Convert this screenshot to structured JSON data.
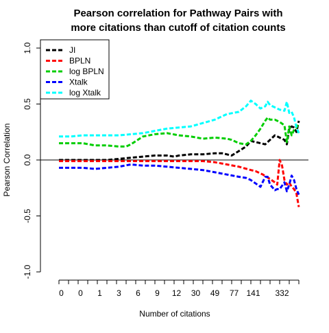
{
  "chart_data": {
    "type": "line",
    "title_line1": "Pearson correlation for Pathway Pairs with",
    "title_line2": "more citations than cutoff of citation counts",
    "xlabel": "Number of citations",
    "ylabel": "Pearson Correlation",
    "ylim": [
      -1.0,
      1.0
    ],
    "xlim": [
      0,
      100
    ],
    "y_ticks": [
      "-1.0",
      "-0.5",
      "0.0",
      "0.5",
      "1.0"
    ],
    "y_tick_values": [
      -1.0,
      -0.5,
      0.0,
      0.5,
      1.0
    ],
    "x_tick_positions": [
      0,
      100
    ],
    "x_tick_count": 26,
    "x_tick_labels": [
      "0",
      "0",
      "1",
      "3",
      "6",
      "9",
      "12",
      "30",
      "49",
      "77",
      "141",
      "332"
    ],
    "x_tick_label_positions": [
      1,
      9,
      17,
      25,
      33,
      41,
      49,
      57,
      65,
      73,
      81,
      93
    ],
    "reference_line_y": 0,
    "legend_position": "top-left",
    "series": [
      {
        "name": "JI",
        "color": "#000000",
        "x": [
          0,
          10,
          20,
          25,
          30,
          35,
          40,
          45,
          48,
          50,
          55,
          60,
          65,
          68,
          70,
          72,
          75,
          78,
          80,
          82,
          84,
          86,
          88,
          90,
          92,
          94,
          95,
          96,
          97,
          98,
          99,
          100
        ],
        "y": [
          0.0,
          0.0,
          0.0,
          0.01,
          0.02,
          0.03,
          0.04,
          0.04,
          0.03,
          0.04,
          0.05,
          0.05,
          0.06,
          0.06,
          0.05,
          0.04,
          0.08,
          0.12,
          0.17,
          0.16,
          0.15,
          0.14,
          0.18,
          0.22,
          0.2,
          0.18,
          0.14,
          0.28,
          0.3,
          0.29,
          0.25,
          0.35
        ]
      },
      {
        "name": "BPLN",
        "color": "#ff0000",
        "x": [
          0,
          10,
          20,
          30,
          40,
          50,
          55,
          60,
          65,
          70,
          75,
          80,
          82,
          85,
          88,
          90,
          91,
          92,
          93,
          94,
          95,
          96,
          97,
          98,
          99,
          100
        ],
        "y": [
          -0.01,
          -0.01,
          -0.01,
          -0.01,
          -0.01,
          -0.01,
          -0.01,
          -0.01,
          -0.02,
          -0.04,
          -0.06,
          -0.09,
          -0.1,
          -0.13,
          -0.17,
          -0.2,
          -0.22,
          0.0,
          -0.05,
          -0.18,
          -0.22,
          -0.2,
          -0.24,
          -0.26,
          -0.3,
          -0.42
        ]
      },
      {
        "name": "log BPLN",
        "color": "#00cd00",
        "x": [
          0,
          5,
          10,
          15,
          20,
          25,
          28,
          30,
          35,
          40,
          45,
          50,
          55,
          60,
          65,
          70,
          72,
          75,
          78,
          80,
          82,
          84,
          86,
          87,
          88,
          90,
          92,
          94,
          95,
          96,
          97,
          98,
          99,
          100
        ],
        "y": [
          0.15,
          0.15,
          0.15,
          0.13,
          0.13,
          0.12,
          0.12,
          0.14,
          0.21,
          0.23,
          0.24,
          0.22,
          0.21,
          0.19,
          0.2,
          0.19,
          0.18,
          0.15,
          0.14,
          0.17,
          0.22,
          0.28,
          0.35,
          0.38,
          0.36,
          0.36,
          0.34,
          0.31,
          0.16,
          0.3,
          0.22,
          0.27,
          0.29,
          0.33
        ]
      },
      {
        "name": "Xtalk",
        "color": "#0000ff",
        "x": [
          0,
          10,
          15,
          20,
          25,
          30,
          35,
          40,
          45,
          50,
          55,
          60,
          65,
          70,
          75,
          78,
          80,
          82,
          84,
          86,
          87,
          88,
          90,
          91,
          92,
          94,
          95,
          96,
          97,
          98,
          99,
          100
        ],
        "y": [
          -0.07,
          -0.07,
          -0.08,
          -0.07,
          -0.06,
          -0.04,
          -0.05,
          -0.05,
          -0.06,
          -0.07,
          -0.08,
          -0.09,
          -0.11,
          -0.13,
          -0.15,
          -0.16,
          -0.18,
          -0.21,
          -0.24,
          -0.15,
          -0.15,
          -0.22,
          -0.27,
          -0.26,
          -0.26,
          -0.2,
          -0.28,
          -0.22,
          -0.14,
          -0.18,
          -0.26,
          -0.31
        ]
      },
      {
        "name": "log Xtalk",
        "color": "#00ffff",
        "x": [
          0,
          5,
          10,
          15,
          20,
          25,
          30,
          35,
          40,
          45,
          50,
          55,
          60,
          65,
          70,
          75,
          78,
          80,
          82,
          84,
          86,
          87,
          88,
          90,
          92,
          94,
          95,
          96,
          97,
          98,
          99,
          100
        ],
        "y": [
          0.21,
          0.21,
          0.22,
          0.22,
          0.22,
          0.22,
          0.23,
          0.24,
          0.26,
          0.28,
          0.29,
          0.3,
          0.33,
          0.36,
          0.41,
          0.43,
          0.48,
          0.53,
          0.5,
          0.46,
          0.48,
          0.52,
          0.49,
          0.47,
          0.45,
          0.44,
          0.52,
          0.42,
          0.43,
          0.38,
          0.29,
          0.24
        ]
      }
    ]
  }
}
